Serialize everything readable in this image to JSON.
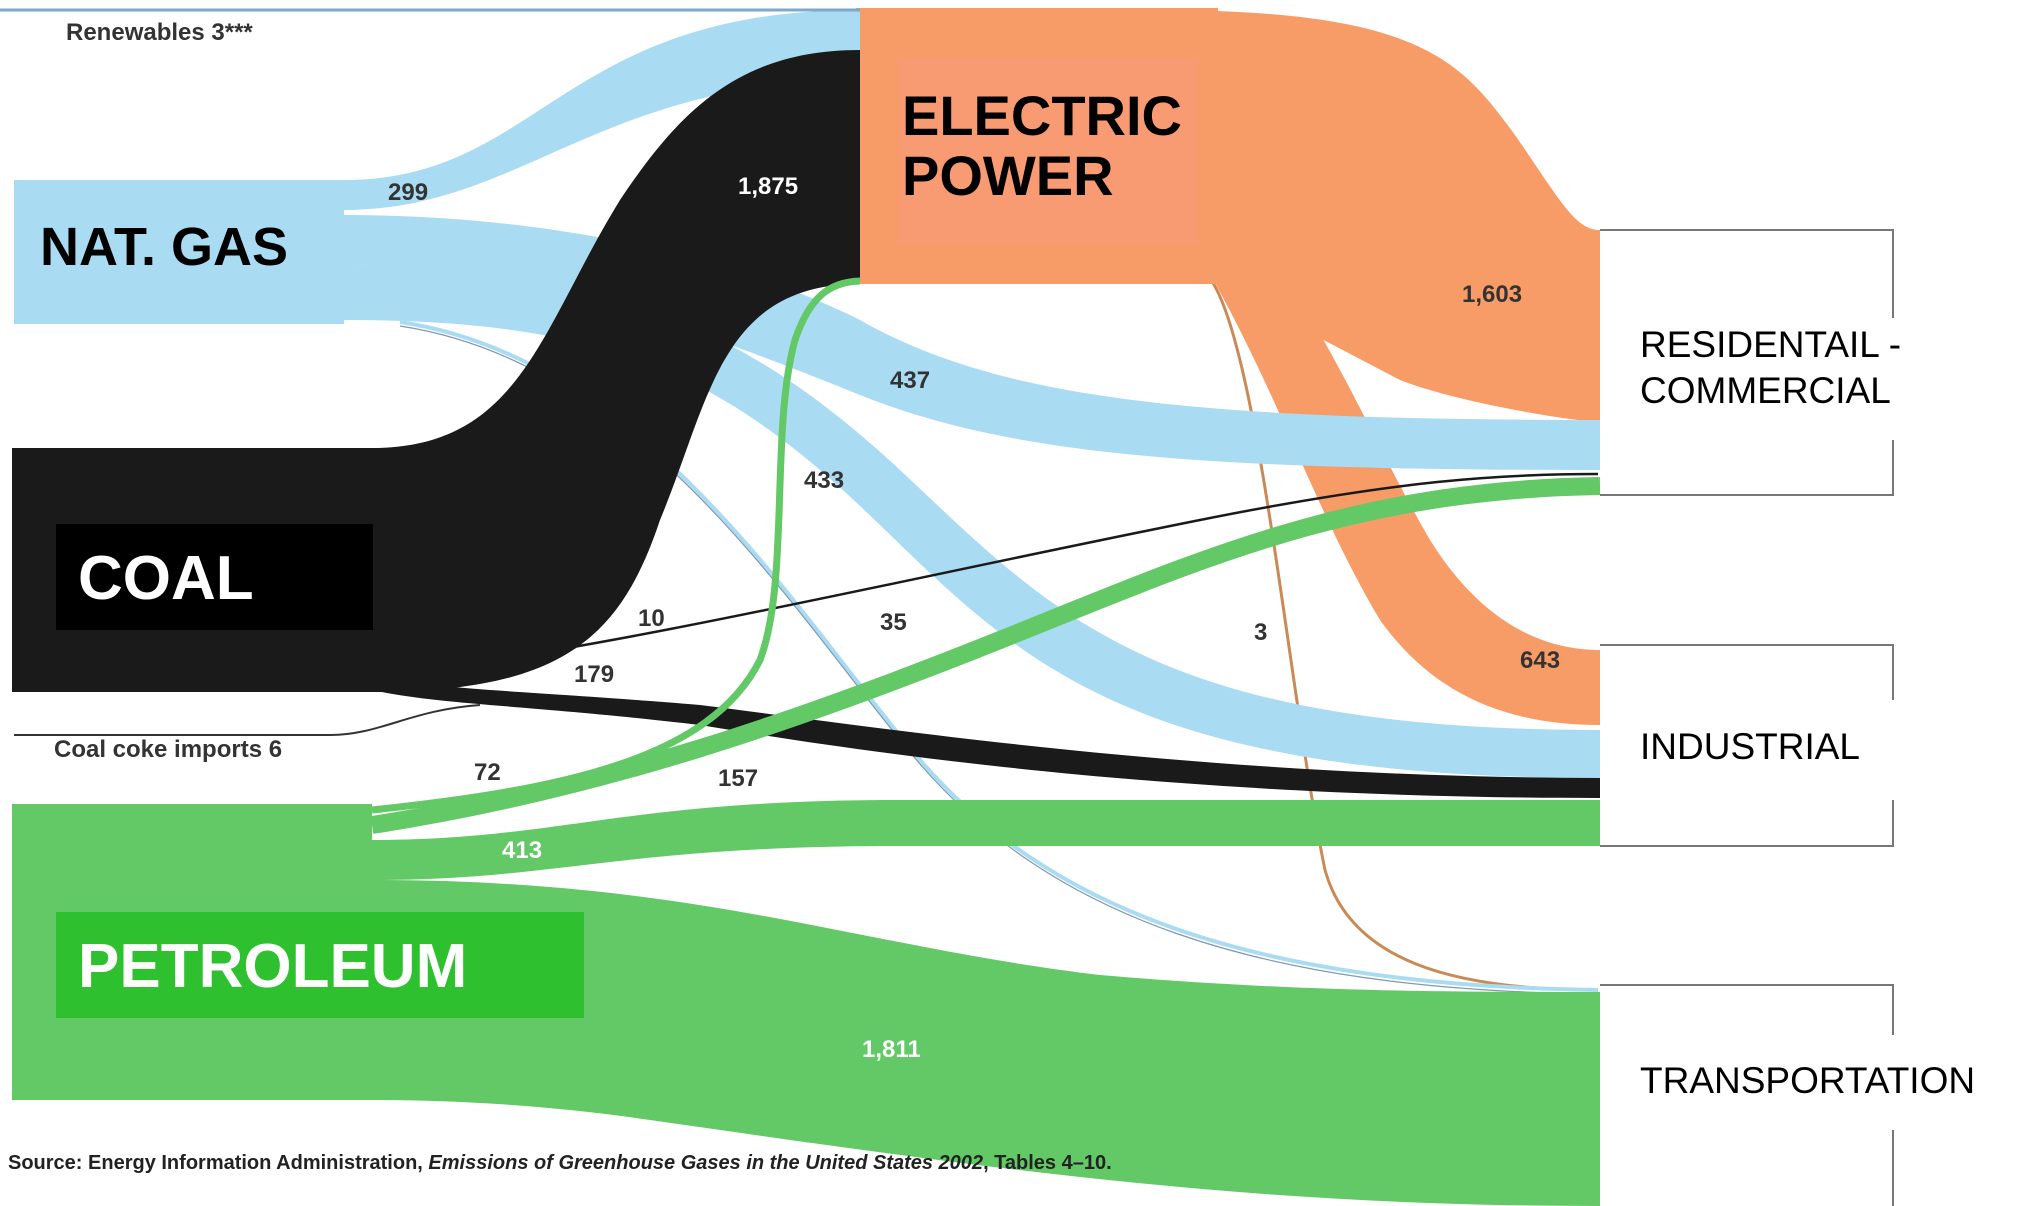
{
  "colors": {
    "natural_gas": "#a9dbf3",
    "coal": "#1a1a1a",
    "petroleum": "#63c866",
    "electric_power": "#f89c67",
    "renewables_line": "#7ea9c8",
    "coal_coke_line": "#333333",
    "petroleum_to_electric_line": "#c98a55"
  },
  "sources": {
    "renewables": "Renewables 3***",
    "natural_gas": "NAT. GAS",
    "coal": "COAL",
    "coal_coke": "Coal coke imports 6",
    "petroleum": "PETROLEUM"
  },
  "hub": {
    "electric_power": [
      "ELECTRIC",
      "POWER"
    ]
  },
  "sectors": {
    "residential_commercial": [
      "RESIDENTAIL -",
      "COMMERCIAL"
    ],
    "industrial": "INDUSTRIAL",
    "transportation": "TRANSPORTATION"
  },
  "flow_values": {
    "gas_to_electric": "299",
    "coal_to_electric": "1,875",
    "electric_to_rescom": "1,603",
    "gas_to_rescom": "437",
    "gas_to_industrial": "433",
    "gas_to_transport": "35",
    "coal_to_rescom": "10",
    "coal_to_industrial": "179",
    "electric_to_transport": "3",
    "electric_to_industrial": "643",
    "petroleum_to_electric": "72",
    "petroleum_to_rescom": "157",
    "petroleum_to_industrial": "413",
    "petroleum_to_transport": "1,811"
  },
  "source_note": {
    "prefix": "Source:  Energy Information Administration, ",
    "title": "Emissions of Greenhouse Gases in the United States 2002",
    "suffix": ", Tables 4–10."
  }
}
